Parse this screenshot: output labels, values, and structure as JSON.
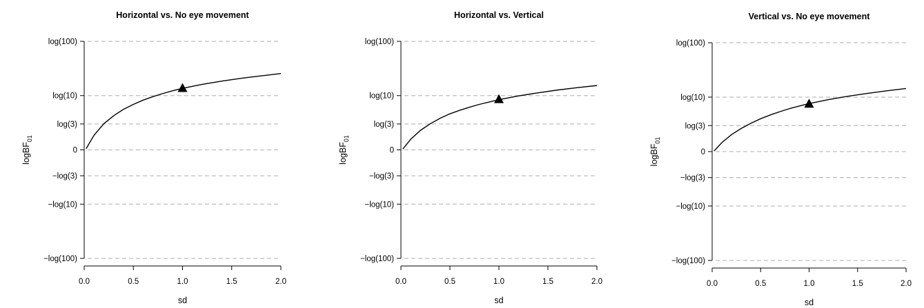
{
  "chart_data": [
    {
      "type": "line",
      "title": "Horizontal vs. No eye movement",
      "xlabel": "sd",
      "ylabel": "logBF",
      "ylabel_sub": "01",
      "x_ticks": [
        "0.0",
        "0.5",
        "1.0",
        "1.5",
        "2.0"
      ],
      "xlim": [
        0.0,
        2.0
      ],
      "y_ticks": [
        {
          "label": "log(100)",
          "value": 4.605
        },
        {
          "label": "log(10)",
          "value": 2.303
        },
        {
          "label": "log(3)",
          "value": 1.099
        },
        {
          "label": "0",
          "value": 0
        },
        {
          "label": "−log(3)",
          "value": -1.099
        },
        {
          "label": "−log(10)",
          "value": -2.303
        },
        {
          "label": "−log(100)",
          "value": -4.605
        }
      ],
      "ylim": [
        -4.605,
        4.605
      ],
      "grid": "horizontal dashed at y ticks",
      "series": [
        {
          "x": [
            0.02,
            0.1,
            0.2,
            0.3,
            0.4,
            0.5,
            0.6,
            0.7,
            0.8,
            0.9,
            1.0,
            1.2,
            1.4,
            1.6,
            1.8,
            2.0
          ],
          "y": [
            0.05,
            0.62,
            1.11,
            1.45,
            1.72,
            1.93,
            2.11,
            2.26,
            2.39,
            2.51,
            2.61,
            2.78,
            2.92,
            3.04,
            3.14,
            3.24
          ]
        }
      ],
      "marker": {
        "shape": "triangle",
        "x": 1.0,
        "y": 2.6
      }
    },
    {
      "type": "line",
      "title": "Horizontal vs. Vertical",
      "xlabel": "sd",
      "ylabel": "logBF",
      "ylabel_sub": "01",
      "x_ticks": [
        "0.0",
        "0.5",
        "1.0",
        "1.5",
        "2.0"
      ],
      "xlim": [
        0.0,
        2.0
      ],
      "y_ticks": [
        {
          "label": "log(100)",
          "value": 4.605
        },
        {
          "label": "log(10)",
          "value": 2.303
        },
        {
          "label": "log(3)",
          "value": 1.099
        },
        {
          "label": "0",
          "value": 0
        },
        {
          "label": "−log(3)",
          "value": -1.099
        },
        {
          "label": "−log(10)",
          "value": -2.303
        },
        {
          "label": "−log(100)",
          "value": -4.605
        }
      ],
      "ylim": [
        -4.605,
        4.605
      ],
      "grid": "horizontal dashed at y ticks",
      "series": [
        {
          "x": [
            0.02,
            0.1,
            0.2,
            0.3,
            0.4,
            0.5,
            0.6,
            0.7,
            0.8,
            0.9,
            1.0,
            1.2,
            1.4,
            1.6,
            1.8,
            2.0
          ],
          "y": [
            0.04,
            0.45,
            0.83,
            1.11,
            1.34,
            1.53,
            1.68,
            1.81,
            1.93,
            2.03,
            2.13,
            2.29,
            2.42,
            2.54,
            2.64,
            2.73
          ]
        }
      ],
      "marker": {
        "shape": "triangle",
        "x": 1.0,
        "y": 2.13
      }
    },
    {
      "type": "line",
      "title": "Vertical vs. No eye movement",
      "xlabel": "sd",
      "ylabel": "logBF",
      "ylabel_sub": "01",
      "x_ticks": [
        "0.0",
        "0.5",
        "1.0",
        "1.5",
        "2.0"
      ],
      "xlim": [
        0.0,
        2.0
      ],
      "y_ticks": [
        {
          "label": "log(100)",
          "value": 4.605
        },
        {
          "label": "log(10)",
          "value": 2.303
        },
        {
          "label": "log(3)",
          "value": 1.099
        },
        {
          "label": "0",
          "value": 0
        },
        {
          "label": "−log(3)",
          "value": -1.099
        },
        {
          "label": "−log(10)",
          "value": -2.303
        },
        {
          "label": "−log(100)",
          "value": -4.605
        }
      ],
      "ylim": [
        -4.605,
        4.605
      ],
      "grid": "horizontal dashed at y ticks",
      "series": [
        {
          "x": [
            0.02,
            0.1,
            0.2,
            0.3,
            0.4,
            0.5,
            0.6,
            0.7,
            0.8,
            0.9,
            1.0,
            1.2,
            1.4,
            1.6,
            1.8,
            2.0
          ],
          "y": [
            0.03,
            0.38,
            0.72,
            0.98,
            1.2,
            1.39,
            1.55,
            1.69,
            1.82,
            1.93,
            2.03,
            2.2,
            2.34,
            2.46,
            2.57,
            2.67
          ]
        }
      ],
      "marker": {
        "shape": "triangle",
        "x": 1.0,
        "y": 2.0
      }
    }
  ],
  "colors": {
    "line": "#000000",
    "grid": "#bdbdbd",
    "axis": "#000000"
  }
}
